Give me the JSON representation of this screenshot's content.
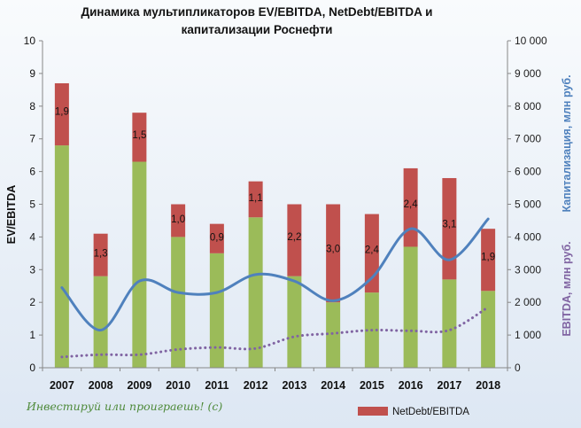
{
  "chart_data": {
    "type": "bar",
    "title_lines": [
      "Динамика мультипликаторов EV/EBITDA, NetDebt/EBITDA и",
      "капитализации Роснефти"
    ],
    "categories": [
      "2007",
      "2008",
      "2009",
      "2010",
      "2011",
      "2012",
      "2013",
      "2014",
      "2015",
      "2016",
      "2017",
      "2018"
    ],
    "ylabel_left": "EV/EBITDA",
    "ylabel_right_top": "Капитализация, млн руб.",
    "ylabel_right_bottom": "EBITDA, млн руб.",
    "ylim_left": [
      0,
      10
    ],
    "ylim_right": [
      0,
      10000
    ],
    "left_ticks": [
      "0",
      "1",
      "2",
      "3",
      "4",
      "5",
      "6",
      "7",
      "8",
      "9",
      "10"
    ],
    "right_ticks": [
      "0",
      "1 000",
      "2 000",
      "3 000",
      "4 000",
      "5 000",
      "6 000",
      "7 000",
      "8 000",
      "9 000",
      "10 000"
    ],
    "stacked": true,
    "series": [
      {
        "kind": "bar",
        "color": "#9bbb59",
        "values": [
          6.8,
          2.8,
          6.3,
          4.0,
          3.5,
          4.6,
          2.8,
          2.0,
          2.3,
          3.7,
          2.7,
          2.35
        ]
      },
      {
        "kind": "bar",
        "name": "NetDebt/EBITDA",
        "color": "#c0504d",
        "values": [
          1.9,
          1.3,
          1.5,
          1.0,
          0.9,
          1.1,
          2.2,
          3.0,
          2.4,
          2.4,
          3.1,
          1.9
        ],
        "value_labels": [
          "1,9",
          "1,3",
          "1,5",
          "1,0",
          "0,9",
          "1,1",
          "2,2",
          "3,0",
          "2,4",
          "2,4",
          "3,1",
          "1,9"
        ]
      },
      {
        "kind": "line",
        "axis": "right",
        "smooth": true,
        "color": "#4f81bd",
        "values": [
          2450,
          1150,
          2650,
          2300,
          2300,
          2850,
          2650,
          2050,
          2750,
          4250,
          3300,
          4550
        ]
      },
      {
        "kind": "line",
        "axis": "right",
        "smooth": true,
        "dotted": true,
        "color": "#8064a2",
        "values": [
          330,
          400,
          400,
          560,
          620,
          590,
          950,
          1050,
          1150,
          1130,
          1150,
          1850
        ]
      }
    ],
    "legend_position": "bottom-right",
    "grid": false
  },
  "watermark": "Инвестируй или проиграешь! (c)",
  "colors": {
    "background": "#eef3f9",
    "right_axis_top_color": "#4f81bd",
    "right_axis_bottom_color": "#8064a2"
  }
}
